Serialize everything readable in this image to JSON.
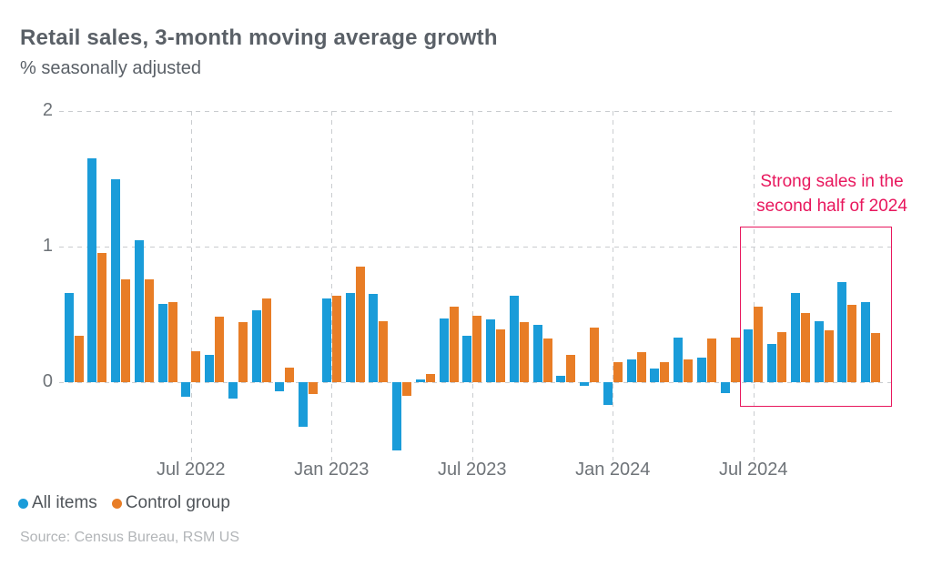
{
  "header": {
    "title": "Retail sales, 3-month moving average growth",
    "subtitle": "% seasonally adjusted"
  },
  "legend": [
    {
      "label": "All items",
      "color": "#1a9cd9",
      "icon": "circle"
    },
    {
      "label": "Control group",
      "color": "#e87d26",
      "icon": "circle"
    }
  ],
  "annotation": {
    "line1": "Strong sales in the",
    "line2": "second half of 2024",
    "color": "#e8175d"
  },
  "source": "Source: Census Bureau, RSM US",
  "chart_data": {
    "type": "bar",
    "title": "Retail sales, 3-month moving average growth",
    "subtitle": "% seasonally adjusted",
    "categories": [
      "Feb 2022",
      "Mar 2022",
      "Apr 2022",
      "May 2022",
      "Jun 2022",
      "Jul 2022",
      "Aug 2022",
      "Sep 2022",
      "Oct 2022",
      "Nov 2022",
      "Dec 2022",
      "Jan 2023",
      "Feb 2023",
      "Mar 2023",
      "Apr 2023",
      "May 2023",
      "Jun 2023",
      "Jul 2023",
      "Aug 2023",
      "Sep 2023",
      "Oct 2023",
      "Nov 2023",
      "Dec 2023",
      "Jan 2024",
      "Feb 2024",
      "Mar 2024",
      "Apr 2024",
      "May 2024",
      "Jun 2024",
      "Jul 2024",
      "Aug 2024",
      "Sep 2024",
      "Oct 2024",
      "Nov 2024",
      "Dec 2024"
    ],
    "series": [
      {
        "name": "All items",
        "color": "#1a9cd9",
        "values": [
          0.66,
          1.65,
          1.5,
          1.05,
          0.58,
          -0.11,
          0.2,
          -0.12,
          0.53,
          -0.07,
          -0.33,
          0.62,
          0.66,
          0.65,
          -0.5,
          0.02,
          0.47,
          0.34,
          0.46,
          0.64,
          0.42,
          0.05,
          -0.03,
          -0.17,
          0.17,
          0.1,
          0.33,
          0.18,
          -0.08,
          0.39,
          0.28,
          0.66,
          0.45,
          0.74,
          0.59
        ]
      },
      {
        "name": "Control group",
        "color": "#e87d26",
        "values": [
          0.34,
          0.95,
          0.76,
          0.76,
          0.59,
          0.23,
          0.48,
          0.44,
          0.62,
          0.11,
          -0.09,
          0.64,
          0.85,
          0.45,
          -0.1,
          0.06,
          0.56,
          0.49,
          0.39,
          0.44,
          0.32,
          0.2,
          0.4,
          0.15,
          0.22,
          0.15,
          0.17,
          0.32,
          0.33,
          0.56,
          0.37,
          0.51,
          0.38,
          0.57,
          0.36
        ]
      }
    ],
    "xticks": [
      {
        "index": 5,
        "label": "Jul 2022"
      },
      {
        "index": 11,
        "label": "Jan 2023"
      },
      {
        "index": 17,
        "label": "Jul 2023"
      },
      {
        "index": 23,
        "label": "Jan 2024"
      },
      {
        "index": 29,
        "label": "Jul 2024"
      }
    ],
    "yticks": [
      0,
      1,
      2
    ],
    "ylim": [
      -0.6,
      2
    ],
    "grid": "dashed",
    "legend_position": "bottom",
    "highlight_region": {
      "start_category": "Jul 2024",
      "end_category": "Dec 2024",
      "start_index": 29,
      "end_index": 34,
      "label": "Strong sales in the second half of 2024",
      "color": "#e8175d"
    }
  }
}
